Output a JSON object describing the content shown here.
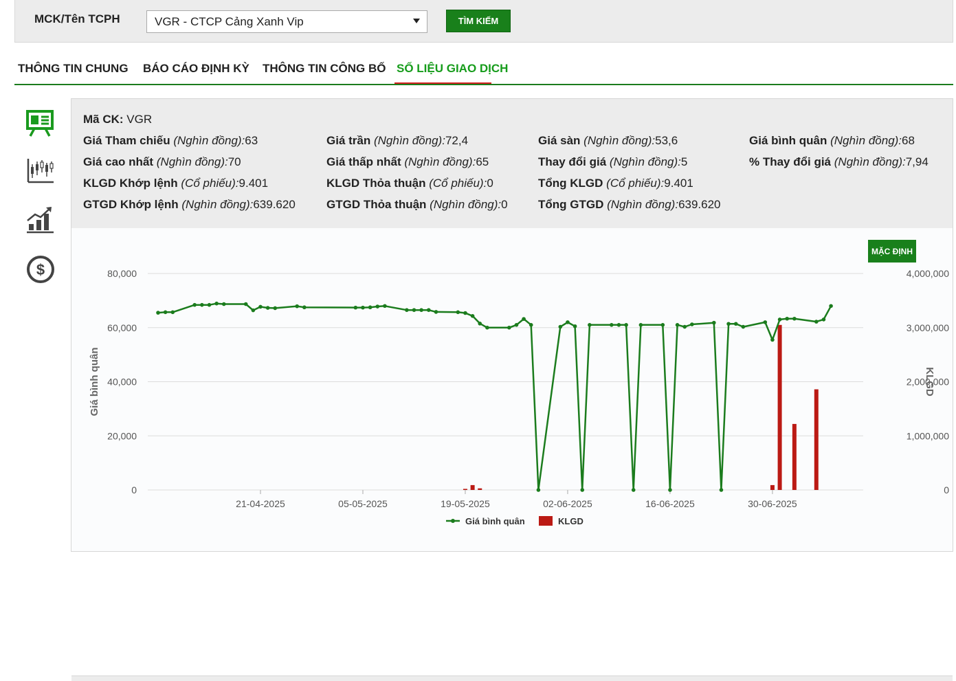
{
  "search": {
    "label": "MCK/Tên TCPH",
    "selected": "VGR - CTCP Cảng Xanh Vip",
    "button": "TÌM KIẾM"
  },
  "tabs": [
    {
      "label": "THÔNG TIN CHUNG",
      "active": false
    },
    {
      "label": "BÁO CÁO ĐỊNH KỲ",
      "active": false
    },
    {
      "label": "THÔNG TIN CÔNG BỐ",
      "active": false
    },
    {
      "label": "SỐ LIỆU GIAO DỊCH",
      "active": true
    }
  ],
  "sidebar_icons": [
    "presentation-icon",
    "candlestick-chart-icon",
    "growth-chart-icon",
    "dollar-coin-icon"
  ],
  "info": {
    "code": {
      "key": "Mã CK:",
      "value": "VGR"
    },
    "rows": [
      [
        {
          "key": "Giá Tham chiếu",
          "unit": "(Nghìn đồng):",
          "value": "63"
        },
        {
          "key": "Giá trần",
          "unit": "(Nghìn đồng):",
          "value": "72,4"
        },
        {
          "key": "Giá sàn",
          "unit": "(Nghìn đồng):",
          "value": "53,6"
        },
        {
          "key": "Giá bình quân",
          "unit": "(Nghìn đồng):",
          "value": "68"
        }
      ],
      [
        {
          "key": "Giá cao nhất",
          "unit": "(Nghìn đồng):",
          "value": "70"
        },
        {
          "key": "Giá thấp nhất",
          "unit": "(Nghìn đồng):",
          "value": "65"
        },
        {
          "key": "Thay đổi giá",
          "unit": "(Nghìn đồng):",
          "value": "5"
        },
        {
          "key": "% Thay đổi giá",
          "unit": "(Nghìn đồng):",
          "value": "7,94"
        }
      ],
      [
        {
          "key": "KLGD Khớp lệnh",
          "unit": "(Cổ phiếu):",
          "value": "9.401"
        },
        {
          "key": "KLGD Thỏa thuận",
          "unit": "(Cổ phiếu):",
          "value": "0"
        },
        {
          "key": "Tổng KLGD",
          "unit": "(Cổ phiếu):",
          "value": "9.401"
        }
      ],
      [
        {
          "key": "GTGD Khớp lệnh",
          "unit": "(Nghìn đồng):",
          "value": "639.620"
        },
        {
          "key": "GTGD Thỏa thuận",
          "unit": "(Nghìn đồng):",
          "value": "0"
        },
        {
          "key": "Tổng GTGD",
          "unit": "(Nghìn đồng):",
          "value": "639.620"
        }
      ]
    ]
  },
  "chart_controls": {
    "default_button": "MẶC ĐỊNH"
  },
  "colors": {
    "price_line": "#1b7c1d",
    "volume_bar": "#bb1a14",
    "accent_green": "#19801b"
  },
  "chart_data": {
    "type": "line+bar",
    "ylabel_left": "Giá bình quân",
    "ylabel_right": "KLGD",
    "y_left_ticks": [
      "0",
      "20,000",
      "40,000",
      "60,000",
      "80,000"
    ],
    "y_right_ticks": [
      "0",
      "1,000,000",
      "2,000,000",
      "3,000,000",
      "4,000,000"
    ],
    "y_left_range": [
      0,
      80000
    ],
    "y_right_range": [
      0,
      4000000
    ],
    "x_ticks": [
      "21-04-2025",
      "05-05-2025",
      "19-05-2025",
      "02-06-2025",
      "16-06-2025",
      "30-06-2025"
    ],
    "x_range": [
      "2025-04-07",
      "2025-07-11"
    ],
    "legend": [
      "Giá bình quân",
      "KLGD"
    ],
    "legend_position": "bottom",
    "grid": true,
    "series": [
      {
        "name": "Giá bình quân",
        "kind": "line",
        "points": [
          [
            "2025-04-07",
            65500
          ],
          [
            "2025-04-08",
            65700
          ],
          [
            "2025-04-09",
            65700
          ],
          [
            "2025-04-12",
            68400
          ],
          [
            "2025-04-13",
            68400
          ],
          [
            "2025-04-14",
            68400
          ],
          [
            "2025-04-15",
            68900
          ],
          [
            "2025-04-16",
            68700
          ],
          [
            "2025-04-19",
            68700
          ],
          [
            "2025-04-20",
            66400
          ],
          [
            "2025-04-21",
            67700
          ],
          [
            "2025-04-22",
            67300
          ],
          [
            "2025-04-23",
            67200
          ],
          [
            "2025-04-26",
            67900
          ],
          [
            "2025-04-27",
            67500
          ],
          [
            "2025-05-04",
            67400
          ],
          [
            "2025-05-05",
            67400
          ],
          [
            "2025-05-06",
            67500
          ],
          [
            "2025-05-07",
            67800
          ],
          [
            "2025-05-08",
            68000
          ],
          [
            "2025-05-11",
            66500
          ],
          [
            "2025-05-12",
            66500
          ],
          [
            "2025-05-13",
            66500
          ],
          [
            "2025-05-14",
            66500
          ],
          [
            "2025-05-15",
            65800
          ],
          [
            "2025-05-18",
            65700
          ],
          [
            "2025-05-19",
            65400
          ],
          [
            "2025-05-20",
            64300
          ],
          [
            "2025-05-21",
            61500
          ],
          [
            "2025-05-22",
            60000
          ],
          [
            "2025-05-25",
            60000
          ],
          [
            "2025-05-26",
            61000
          ],
          [
            "2025-05-27",
            63200
          ],
          [
            "2025-05-28",
            61000
          ],
          [
            "2025-05-29",
            0
          ],
          [
            "2025-06-01",
            60300
          ],
          [
            "2025-06-02",
            62000
          ],
          [
            "2025-06-03",
            60500
          ],
          [
            "2025-06-04",
            0
          ],
          [
            "2025-06-05",
            61000
          ],
          [
            "2025-06-08",
            61000
          ],
          [
            "2025-06-09",
            61000
          ],
          [
            "2025-06-10",
            61000
          ],
          [
            "2025-06-11",
            0
          ],
          [
            "2025-06-12",
            61000
          ],
          [
            "2025-06-15",
            61000
          ],
          [
            "2025-06-16",
            0
          ],
          [
            "2025-06-17",
            61000
          ],
          [
            "2025-06-18",
            60300
          ],
          [
            "2025-06-19",
            61200
          ],
          [
            "2025-06-22",
            61800
          ],
          [
            "2025-06-23",
            0
          ],
          [
            "2025-06-24",
            61400
          ],
          [
            "2025-06-25",
            61400
          ],
          [
            "2025-06-26",
            60300
          ],
          [
            "2025-06-29",
            62000
          ],
          [
            "2025-06-30",
            55500
          ],
          [
            "2025-07-01",
            63000
          ],
          [
            "2025-07-02",
            63300
          ],
          [
            "2025-07-03",
            63300
          ],
          [
            "2025-07-06",
            62200
          ],
          [
            "2025-07-07",
            63000
          ],
          [
            "2025-07-08",
            68000
          ]
        ]
      },
      {
        "name": "KLGD",
        "kind": "bar",
        "points": [
          [
            "2025-05-19",
            20000
          ],
          [
            "2025-05-20",
            90000
          ],
          [
            "2025-05-21",
            30000
          ],
          [
            "2025-06-30",
            90000
          ],
          [
            "2025-07-01",
            3050000
          ],
          [
            "2025-07-03",
            1220000
          ],
          [
            "2025-07-06",
            1860000
          ]
        ]
      }
    ]
  }
}
